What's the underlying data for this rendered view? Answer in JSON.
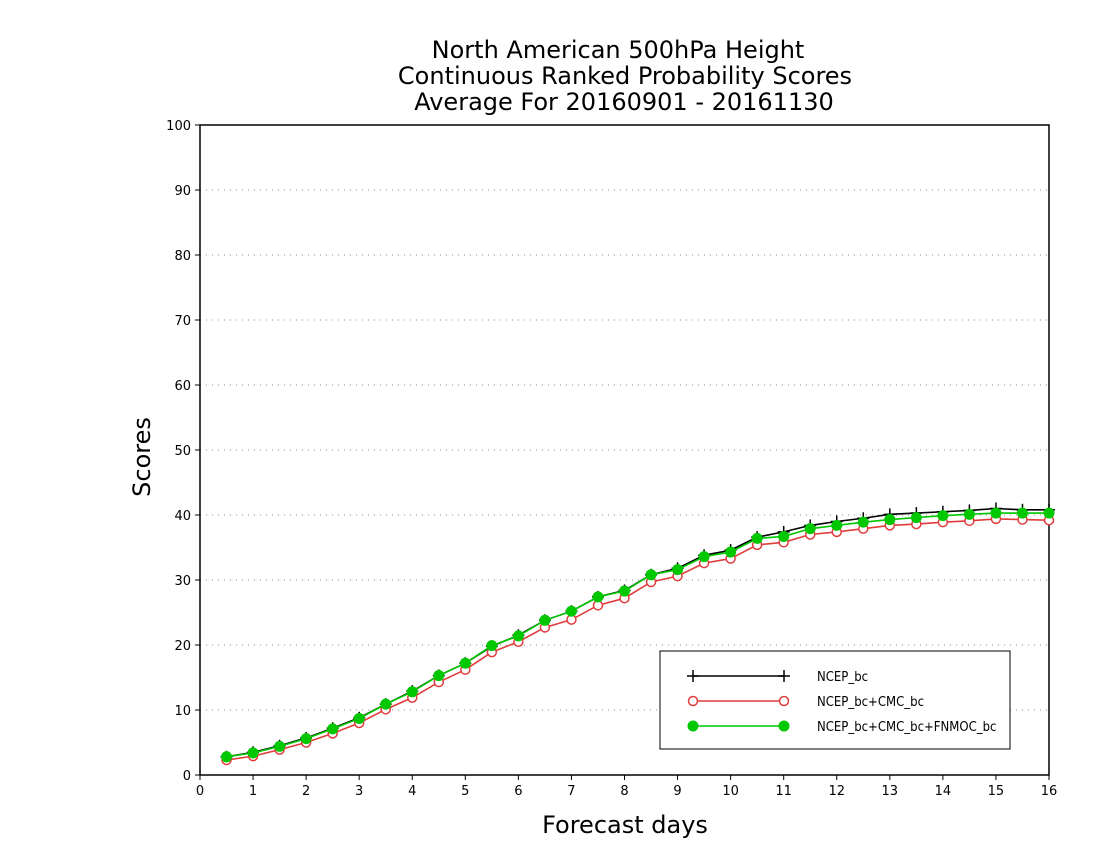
{
  "chart_data": {
    "type": "line",
    "title": [
      "North American 500hPa Height",
      "Continuous Ranked Probability Scores",
      "Average For 20160901 - 20161130"
    ],
    "xlabel": "Forecast days",
    "ylabel": "Scores",
    "xlim": [
      0,
      16
    ],
    "ylim": [
      0,
      100
    ],
    "xticks": [
      0,
      1,
      2,
      3,
      4,
      5,
      6,
      7,
      8,
      9,
      10,
      11,
      12,
      13,
      14,
      15,
      16
    ],
    "yticks": [
      0,
      10,
      20,
      30,
      40,
      50,
      60,
      70,
      80,
      90,
      100
    ],
    "grid": "horizontal dotted",
    "legend_position": "bottom-right",
    "x": [
      0.5,
      1,
      1.5,
      2,
      2.5,
      3,
      3.5,
      4,
      4.5,
      5,
      5.5,
      6,
      6.5,
      7,
      7.5,
      8,
      8.5,
      9,
      9.5,
      10,
      10.5,
      11,
      11.5,
      12,
      12.5,
      13,
      13.5,
      14,
      14.5,
      15,
      15.5,
      16
    ],
    "series": [
      {
        "name": "NCEP_bc",
        "color": "#000000",
        "marker": "plus",
        "values": [
          2.8,
          3.5,
          4.5,
          5.7,
          7.2,
          8.8,
          10.9,
          12.9,
          15.3,
          17.2,
          19.8,
          21.5,
          23.8,
          25.2,
          27.4,
          28.4,
          30.8,
          31.8,
          33.8,
          34.6,
          36.6,
          37.4,
          38.4,
          39.0,
          39.5,
          40.1,
          40.3,
          40.5,
          40.7,
          41.0,
          40.8,
          40.8
        ]
      },
      {
        "name": "NCEP_bc+CMC_bc",
        "color": "#e03c3c",
        "marker": "open-circle",
        "values": [
          2.3,
          2.9,
          3.9,
          5.0,
          6.4,
          8.0,
          10.1,
          11.9,
          14.3,
          16.2,
          18.9,
          20.5,
          22.7,
          23.9,
          26.1,
          27.2,
          29.7,
          30.6,
          32.6,
          33.3,
          35.4,
          35.8,
          37.0,
          37.4,
          37.9,
          38.4,
          38.6,
          38.9,
          39.1,
          39.4,
          39.3,
          39.2
        ]
      },
      {
        "name": "NCEP_bc+CMC_bc+FNMOC_bc",
        "color": "#00c800",
        "marker": "filled-circle",
        "values": [
          2.8,
          3.4,
          4.4,
          5.6,
          7.1,
          8.7,
          10.9,
          12.8,
          15.3,
          17.2,
          19.9,
          21.4,
          23.8,
          25.2,
          27.4,
          28.3,
          30.8,
          31.6,
          33.6,
          34.3,
          36.4,
          36.7,
          37.9,
          38.4,
          38.9,
          39.3,
          39.6,
          39.9,
          40.1,
          40.3,
          40.3,
          40.3
        ]
      }
    ]
  }
}
